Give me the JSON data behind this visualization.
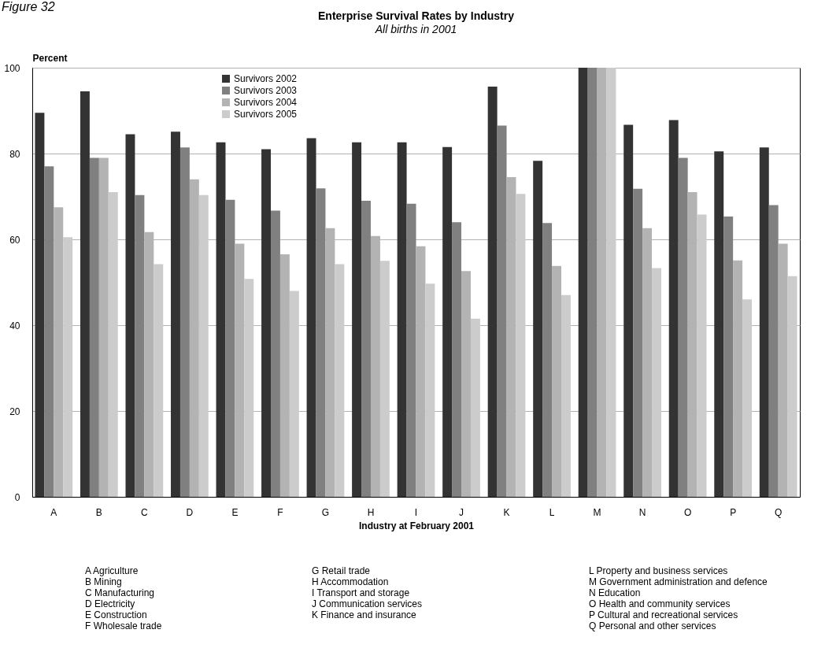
{
  "chart_data": {
    "type": "bar",
    "title": "Enterprise Survival Rates by Industry",
    "subtitle": "All births in 2001",
    "xlabel": "Industry at February 2001",
    "ylabel": "Percent",
    "categories": [
      "A",
      "B",
      "C",
      "D",
      "E",
      "F",
      "G",
      "H",
      "I",
      "J",
      "K",
      "L",
      "M",
      "N",
      "O",
      "P",
      "Q"
    ],
    "series": [
      {
        "name": "Survivors 2002",
        "color": "#333333",
        "values": [
          89.5,
          94.5,
          84.5,
          85.1,
          82.6,
          81,
          83.6,
          82.6,
          82.6,
          81.5,
          95.6,
          78.3,
          100,
          86.7,
          87.8,
          80.5,
          81.4
        ]
      },
      {
        "name": "Survivors 2003",
        "color": "#808080",
        "values": [
          77,
          79,
          70.3,
          81.4,
          69.2,
          66.7,
          71.9,
          69,
          68.3,
          64,
          86.5,
          63.8,
          100,
          71.8,
          79,
          65.3,
          68
        ]
      },
      {
        "name": "Survivors 2004",
        "color": "#b3b3b3",
        "values": [
          67.5,
          79,
          61.7,
          74,
          59,
          56.5,
          62.6,
          60.8,
          58.4,
          52.6,
          74.5,
          53.8,
          100,
          62.6,
          71,
          55.1,
          59
        ]
      },
      {
        "name": "Survivors 2005",
        "color": "#cccccc",
        "values": [
          60.5,
          71,
          54.2,
          70.3,
          50.8,
          48,
          54.2,
          55,
          49.7,
          41.5,
          70.6,
          47,
          100,
          53.3,
          65.8,
          46,
          51.4
        ]
      }
    ],
    "ylim": [
      0,
      100
    ],
    "yticks": [
      0,
      20,
      40,
      60,
      80,
      100
    ],
    "grid": "y",
    "legend": "top left",
    "annotations": [
      "Figure 32",
      "A Agriculture",
      "B Mining",
      "C Manufacturing",
      "D Electricity",
      "E Construction",
      "F Wholesale trade",
      "G Retail trade",
      "H Accommodation",
      "I Transport and storage",
      "J Communication services",
      "K Finance and insurance",
      "L Property and business services",
      "M Government administration and defence",
      "N Education",
      "O Health and community services",
      "P Cultural and recreational services",
      "Q Personal and other services"
    ]
  }
}
